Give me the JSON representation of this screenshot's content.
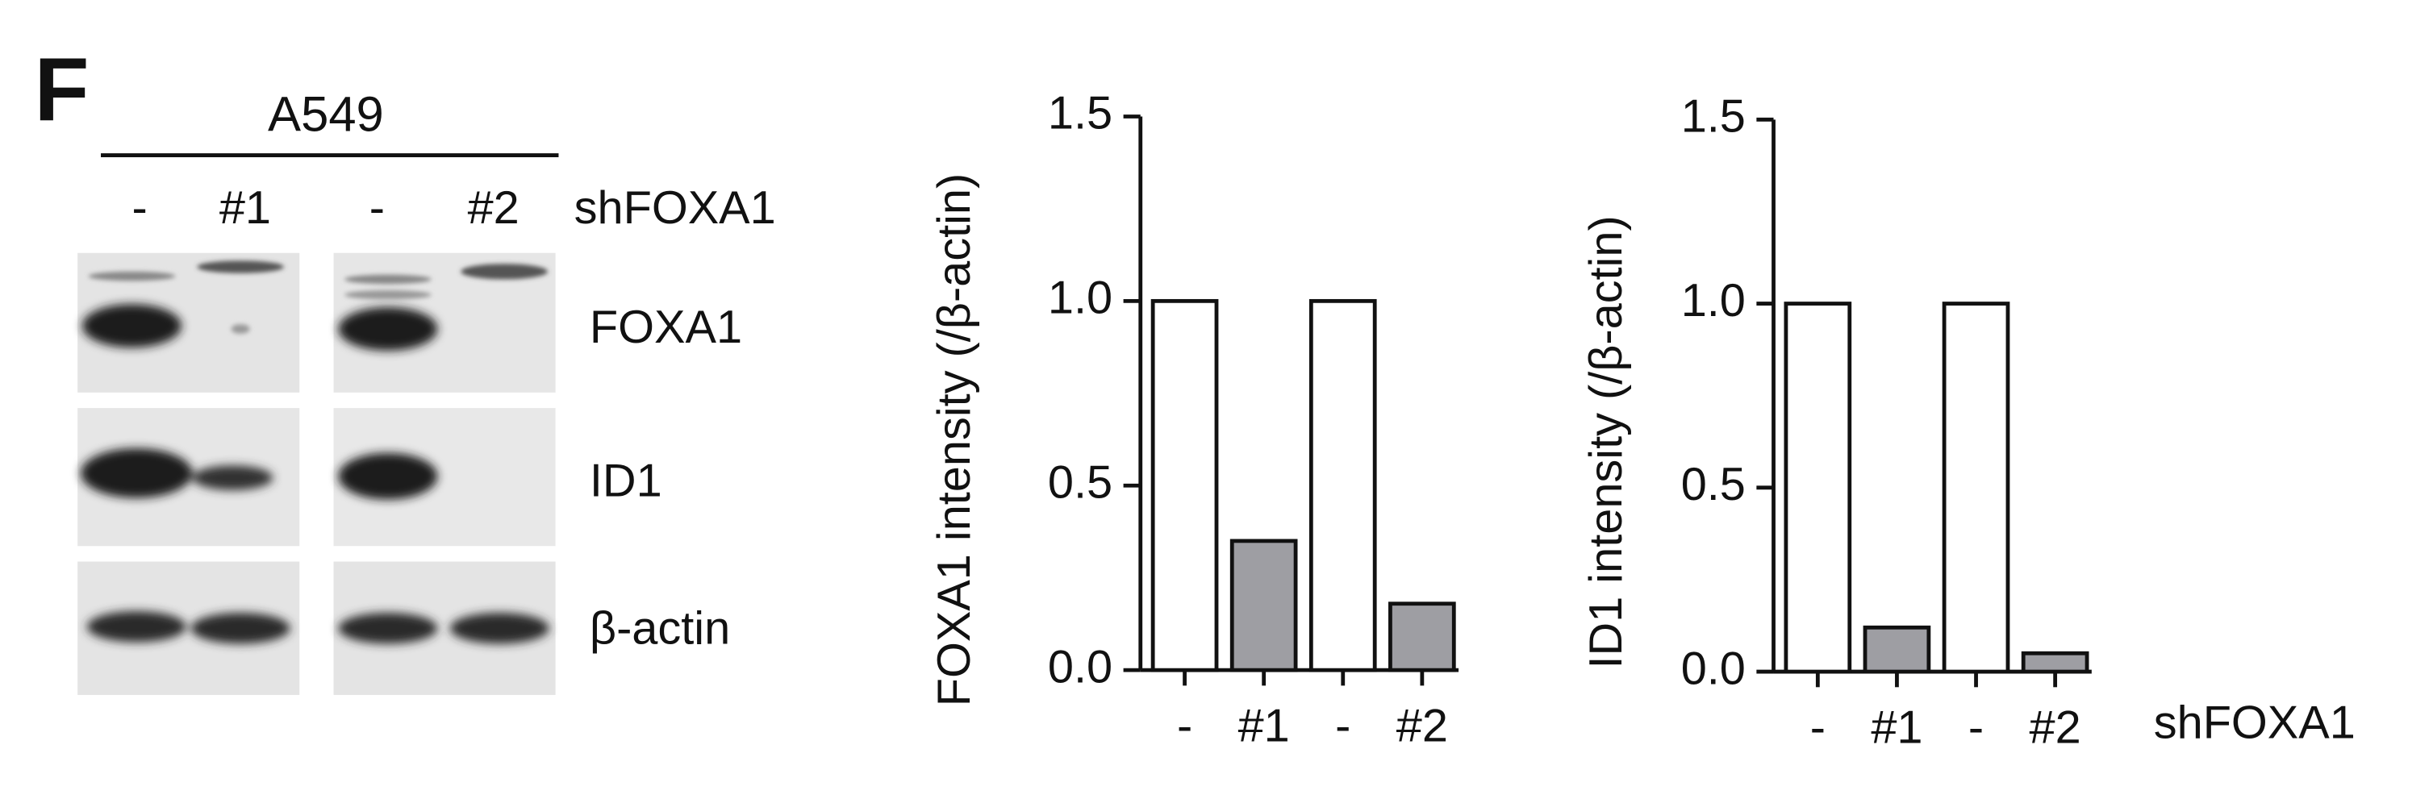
{
  "panel": "F",
  "blot": {
    "cell_line": "A549",
    "lanes": [
      "-",
      "#1",
      "-",
      "#2"
    ],
    "condition": "shFOXA1",
    "proteins": [
      "FOXA1",
      "ID1",
      "β-actin"
    ]
  },
  "chart_data": [
    {
      "type": "bar",
      "ylabel": "FOXA1 intensity (/β-actin)",
      "categories": [
        "-",
        "#1",
        "-",
        "#2"
      ],
      "values": [
        1.0,
        0.35,
        1.0,
        0.18
      ],
      "colors": [
        "#ffffff",
        "#9e9ea3",
        "#ffffff",
        "#9e9ea3"
      ],
      "ylim": [
        0,
        1.5
      ],
      "yticks": [
        {
          "value": 0,
          "label": "0.0"
        },
        0.5,
        {
          "value": 1,
          "label": "1.0"
        },
        1.5
      ]
    },
    {
      "type": "bar",
      "ylabel": "ID1 intensity (/β-actin)",
      "xlabel": "shFOXA1",
      "categories": [
        "-",
        "#1",
        "-",
        "#2"
      ],
      "values": [
        1.0,
        0.12,
        1.0,
        0.05
      ],
      "colors": [
        "#ffffff",
        "#9e9ea3",
        "#ffffff",
        "#9e9ea3"
      ],
      "ylim": [
        0,
        1.5
      ],
      "yticks": [
        {
          "value": 0,
          "label": "0.0"
        },
        0.5,
        {
          "value": 1,
          "label": "1.0"
        },
        1.5
      ]
    }
  ]
}
